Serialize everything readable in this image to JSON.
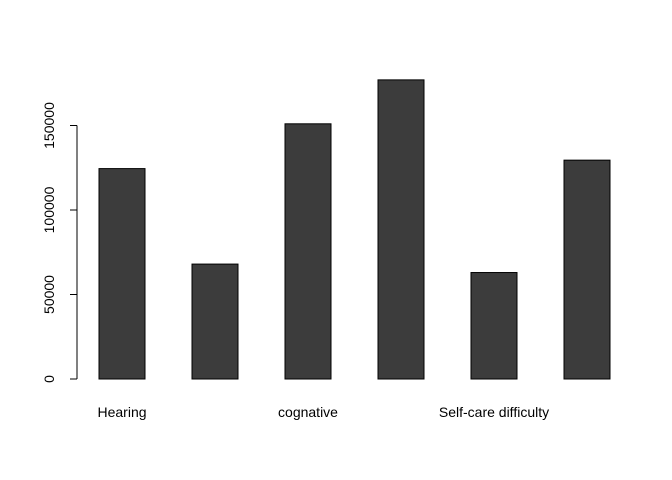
{
  "chart_data": {
    "type": "bar",
    "categories": [
      "Hearing",
      "",
      "cognative",
      "",
      "Self-care difficulty",
      ""
    ],
    "values": [
      124500,
      68000,
      151000,
      177000,
      63000,
      129500
    ],
    "ylim": [
      0,
      185000
    ],
    "yticks": [
      0,
      50000,
      100000,
      150000
    ],
    "ytick_labels": [
      "0",
      "50000",
      "100000",
      "150000"
    ],
    "bar_color": "#3c3c3c",
    "grid": false
  }
}
